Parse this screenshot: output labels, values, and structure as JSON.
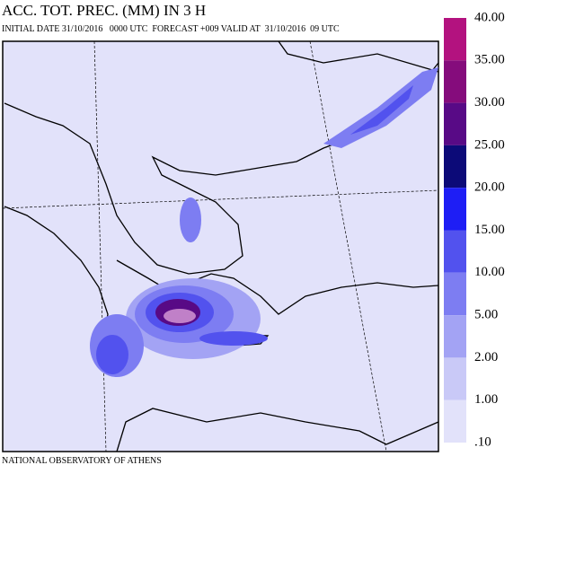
{
  "header": {
    "title": "ACC. TOT. PREC. (MM) IN 3 H",
    "subtitle": "INITIAL DATE 31/10/2016   0000 UTC  FORECAST +009 VALID AT  31/10/2016  09 UTC"
  },
  "legend": {
    "labels": [
      "40.00",
      "35.00",
      "30.00",
      "25.00",
      "20.00",
      "15.00",
      "10.00",
      "5.00",
      "2.00",
      "1.00",
      ".10"
    ],
    "colors": [
      "#b3127f",
      "#850c7c",
      "#580a86",
      "#0c0a78",
      "#1e1ef5",
      "#5252ee",
      "#7d7df2",
      "#a3a3f4",
      "#c9c9f7",
      "#e2e2fa"
    ]
  },
  "footer": "NATIONAL OBSERVATORY OF ATHENS"
}
